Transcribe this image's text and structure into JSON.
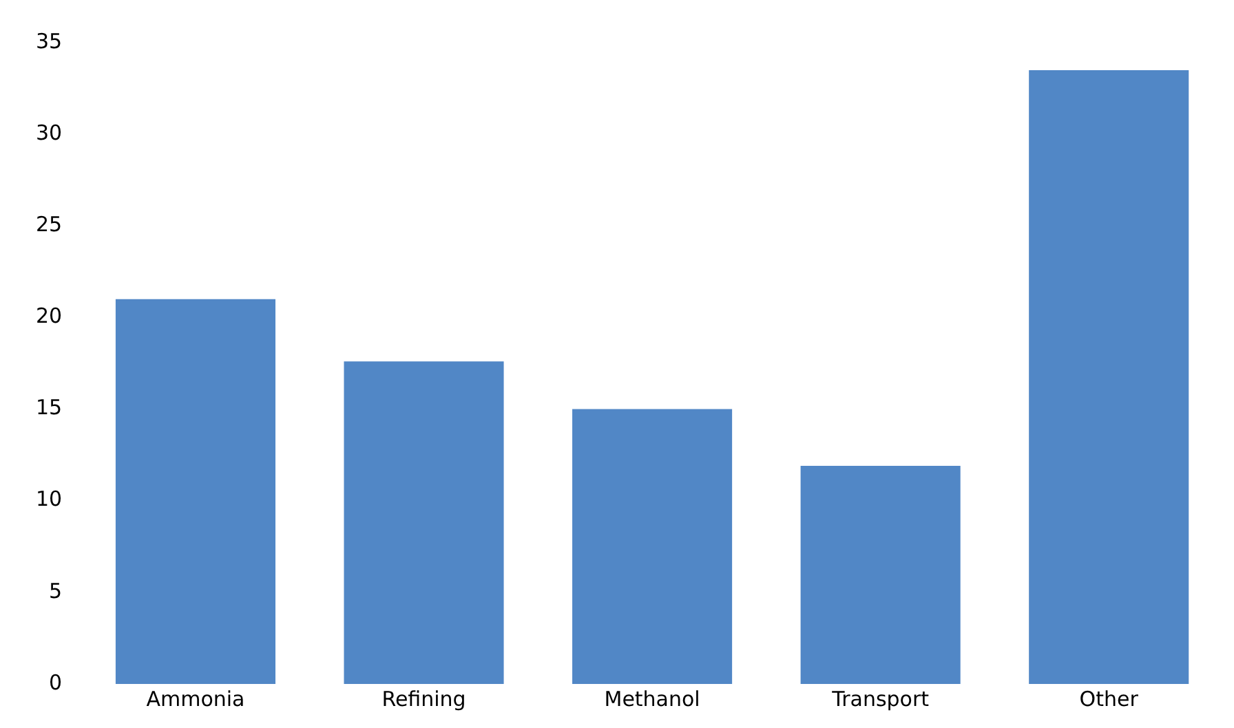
{
  "chart_data": {
    "type": "bar",
    "categories": [
      "Ammonia",
      "Refining",
      "Methanol",
      "Transport",
      "Other"
    ],
    "values": [
      21.0,
      17.6,
      15.0,
      11.9,
      33.5
    ],
    "color": "#5187c6",
    "ylim": [
      0,
      35
    ],
    "yticks": [
      0,
      5,
      10,
      15,
      20,
      25,
      30,
      35
    ],
    "grid": false,
    "legend": false
  }
}
